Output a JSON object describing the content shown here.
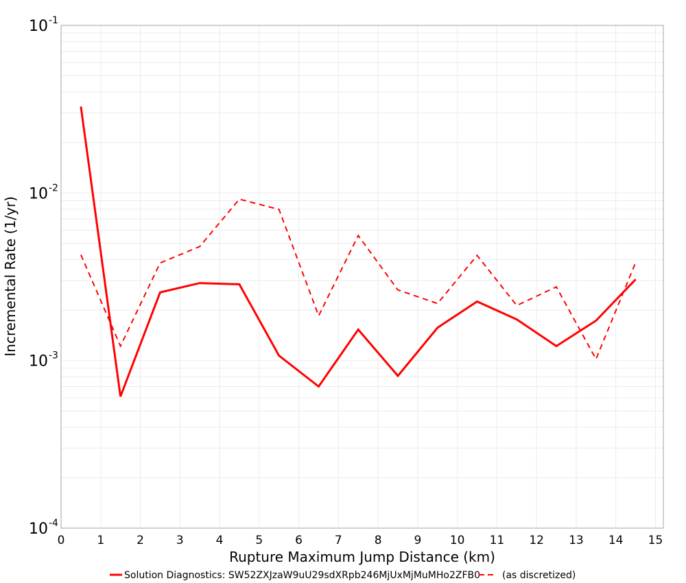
{
  "chart_data": {
    "type": "line",
    "title": "",
    "xlabel": "Rupture Maximum Jump Distance (km)",
    "ylabel": "Incremental Rate (1/yr)",
    "x_scale": "linear",
    "y_scale": "log",
    "xlim": [
      0,
      15.2
    ],
    "ylim": [
      0.0001,
      0.1
    ],
    "x_ticks": [
      0,
      1,
      2,
      3,
      4,
      5,
      6,
      7,
      8,
      9,
      10,
      11,
      12,
      13,
      14,
      15
    ],
    "y_ticks": [
      {
        "value": 0.1,
        "base": "10",
        "exp": "-1"
      },
      {
        "value": 0.01,
        "base": "10",
        "exp": "-2"
      },
      {
        "value": 0.001,
        "base": "10",
        "exp": "-3"
      },
      {
        "value": 0.0001,
        "base": "10",
        "exp": "-4"
      }
    ],
    "grid": true,
    "legend_position": "bottom",
    "x": [
      0.5,
      1.5,
      2.5,
      3.5,
      4.5,
      5.5,
      6.5,
      7.5,
      8.5,
      9.5,
      10.5,
      11.5,
      12.5,
      13.5,
      14.5
    ],
    "series": [
      {
        "name": "Solution Diagnostics: SW52ZXJzaW9uU29sdXRpb246MjUxMjMuMHo2ZFB0",
        "style": "solid",
        "color": "#ff0000",
        "values": [
          0.0328,
          0.00061,
          0.00255,
          0.0029,
          0.00285,
          0.00107,
          0.0007,
          0.00153,
          0.00081,
          0.00157,
          0.00225,
          0.00176,
          0.00122,
          0.00173,
          0.00305
        ]
      },
      {
        "name": "(as discretized)",
        "style": "dashed",
        "color": "#ff0000",
        "values": [
          0.00428,
          0.00122,
          0.00382,
          0.00479,
          0.00918,
          0.00798,
          0.00185,
          0.00557,
          0.00264,
          0.00219,
          0.00424,
          0.00213,
          0.00275,
          0.00102,
          0.00385
        ]
      }
    ]
  },
  "colors": {
    "series": "#ff0000",
    "grid": "#ebebeb",
    "axis": "#a0a0a0"
  }
}
